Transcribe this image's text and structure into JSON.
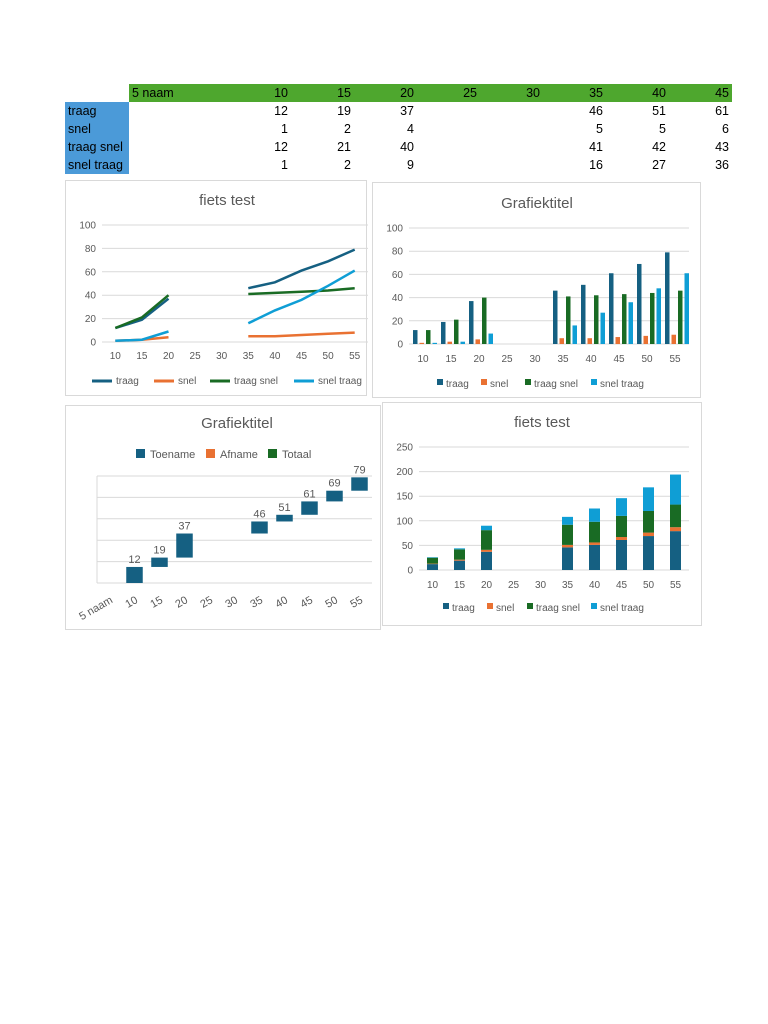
{
  "table": {
    "corner": "5 naam",
    "headers": [
      "10",
      "15",
      "20",
      "25",
      "30",
      "35",
      "40",
      "45"
    ],
    "rows": [
      {
        "label": "traag",
        "values": [
          "12",
          "19",
          "37",
          "",
          "",
          "46",
          "51",
          "61"
        ]
      },
      {
        "label": "snel",
        "values": [
          "1",
          "2",
          "4",
          "",
          "",
          "5",
          "5",
          "6"
        ]
      },
      {
        "label": "traag snel",
        "values": [
          "12",
          "21",
          "40",
          "",
          "",
          "41",
          "42",
          "43"
        ]
      },
      {
        "label": "snel traag",
        "values": [
          "1",
          "2",
          "9",
          "",
          "",
          "16",
          "27",
          "36"
        ]
      }
    ]
  },
  "colors": {
    "traag": "#156082",
    "snel": "#e97132",
    "traag snel": "#196b24",
    "snel traag": "#0f9ed5",
    "header_bg": "#4ea72e",
    "label_bg": "#4b9ad8"
  },
  "chart_data": [
    {
      "id": "chart1",
      "type": "line",
      "title": "fiets test",
      "categories": [
        "10",
        "15",
        "20",
        "25",
        "30",
        "35",
        "40",
        "45",
        "50",
        "55"
      ],
      "ylim": [
        0,
        100
      ],
      "yticks": [
        0,
        20,
        40,
        60,
        80,
        100
      ],
      "series": [
        {
          "name": "traag",
          "values": [
            12,
            19,
            37,
            null,
            null,
            46,
            51,
            61,
            69,
            79
          ]
        },
        {
          "name": "snel",
          "values": [
            1,
            2,
            4,
            null,
            null,
            5,
            5,
            6,
            7,
            8
          ]
        },
        {
          "name": "traag snel",
          "values": [
            12,
            21,
            40,
            null,
            null,
            41,
            42,
            43,
            44,
            46
          ]
        },
        {
          "name": "snel traag",
          "values": [
            1,
            2,
            9,
            null,
            null,
            16,
            27,
            36,
            48,
            61
          ]
        }
      ],
      "legend": "bottom"
    },
    {
      "id": "chart2",
      "type": "bar",
      "title": "Grafiektitel",
      "categories": [
        "10",
        "15",
        "20",
        "25",
        "30",
        "35",
        "40",
        "45",
        "50",
        "55"
      ],
      "ylim": [
        0,
        100
      ],
      "yticks": [
        0,
        20,
        40,
        60,
        80,
        100
      ],
      "series": [
        {
          "name": "traag",
          "values": [
            12,
            19,
            37,
            null,
            null,
            46,
            51,
            61,
            69,
            79
          ]
        },
        {
          "name": "snel",
          "values": [
            1,
            2,
            4,
            null,
            null,
            5,
            5,
            6,
            7,
            8
          ]
        },
        {
          "name": "traag snel",
          "values": [
            12,
            21,
            40,
            null,
            null,
            41,
            42,
            43,
            44,
            46
          ]
        },
        {
          "name": "snel traag",
          "values": [
            1,
            2,
            9,
            null,
            null,
            16,
            27,
            36,
            48,
            61
          ]
        }
      ],
      "legend": "bottom"
    },
    {
      "id": "chart3",
      "type": "waterfall",
      "title": "Grafiektitel",
      "legend_entries": [
        {
          "name": "Toename",
          "color": "#156082"
        },
        {
          "name": "Afname",
          "color": "#e97132"
        },
        {
          "name": "Totaal",
          "color": "#196b24"
        }
      ],
      "categories": [
        "5 naam",
        "10",
        "15",
        "20",
        "25",
        "30",
        "35",
        "40",
        "45",
        "50",
        "55"
      ],
      "values": [
        null,
        12,
        19,
        37,
        null,
        null,
        46,
        51,
        61,
        69,
        79
      ],
      "legend": "top"
    },
    {
      "id": "chart4",
      "type": "stacked-bar",
      "title": "fiets test",
      "categories": [
        "10",
        "15",
        "20",
        "25",
        "30",
        "35",
        "40",
        "45",
        "50",
        "55"
      ],
      "ylim": [
        0,
        250
      ],
      "yticks": [
        0,
        50,
        100,
        150,
        200,
        250
      ],
      "series": [
        {
          "name": "traag",
          "values": [
            12,
            19,
            37,
            null,
            null,
            46,
            51,
            61,
            69,
            79
          ]
        },
        {
          "name": "snel",
          "values": [
            1,
            2,
            4,
            null,
            null,
            5,
            5,
            6,
            7,
            8
          ]
        },
        {
          "name": "traag snel",
          "values": [
            12,
            21,
            40,
            null,
            null,
            41,
            42,
            43,
            44,
            46
          ]
        },
        {
          "name": "snel traag",
          "values": [
            1,
            2,
            9,
            null,
            null,
            16,
            27,
            36,
            48,
            61
          ]
        }
      ],
      "legend": "bottom"
    }
  ]
}
